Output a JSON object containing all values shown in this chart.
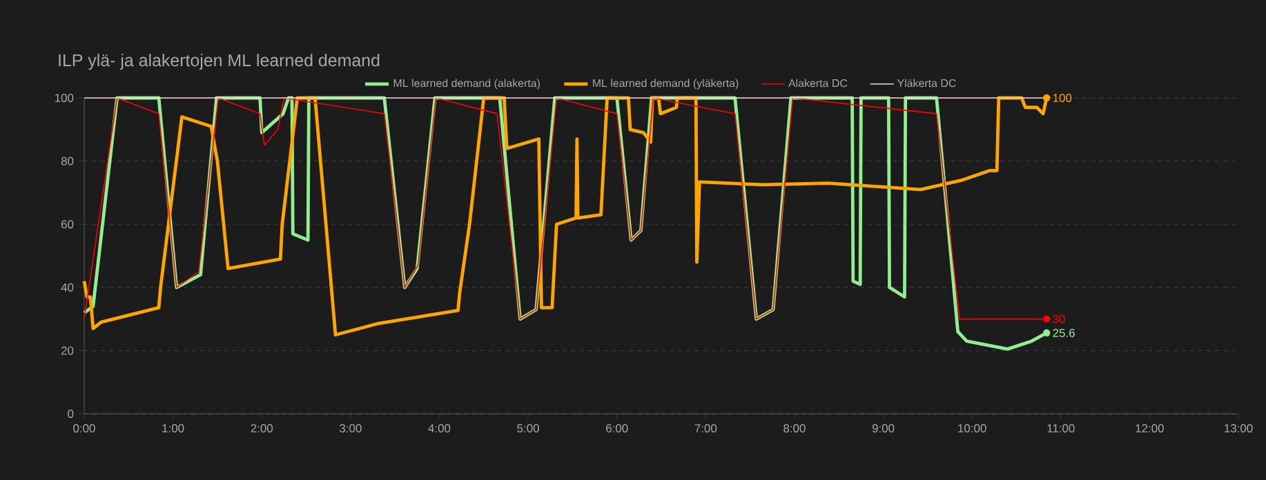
{
  "chart_data": {
    "type": "line",
    "title": "ILP ylä- ja alakertojen ML learned demand",
    "xlim": [
      0,
      13
    ],
    "xticks": [
      {
        "value": 0,
        "label": "0:00"
      },
      {
        "value": 1,
        "label": "1:00"
      },
      {
        "value": 2,
        "label": "2:00"
      },
      {
        "value": 3,
        "label": "3:00"
      },
      {
        "value": 4,
        "label": "4:00"
      },
      {
        "value": 5,
        "label": "5:00"
      },
      {
        "value": 6,
        "label": "6:00"
      },
      {
        "value": 7,
        "label": "7:00"
      },
      {
        "value": 8,
        "label": "8:00"
      },
      {
        "value": 9,
        "label": "9:00"
      },
      {
        "value": 10,
        "label": "10:00"
      },
      {
        "value": 11,
        "label": "11:00"
      },
      {
        "value": 12,
        "label": "12:00"
      },
      {
        "value": 13,
        "label": "13:00"
      }
    ],
    "ylim": [
      0,
      100
    ],
    "yticks": [
      0,
      20,
      40,
      60,
      80,
      100
    ],
    "grid": "y",
    "legend": "top",
    "marker": "none",
    "line_style": "solid",
    "series": [
      {
        "name": "ML learned demand (alakerta)",
        "color": "#90ee90",
        "x": [
          0,
          0.1,
          0.37,
          0.84,
          1.04,
          1.31,
          1.49,
          1.98,
          2.0,
          2.24,
          2.3,
          2.34,
          2.35,
          2.52,
          2.53,
          3.38,
          3.61,
          3.75,
          3.95,
          4.68,
          4.91,
          5.09,
          5.3,
          6.0,
          6.16,
          6.27,
          6.39,
          7.33,
          7.57,
          7.76,
          7.96,
          8.65,
          8.66,
          8.74,
          8.75,
          9.06,
          9.07,
          9.24,
          9.25,
          9.6,
          9.84,
          9.94,
          10.4,
          10.67,
          10.84
        ],
        "values": [
          32,
          34,
          100,
          100,
          40,
          44,
          100,
          100,
          89,
          95,
          100,
          100,
          57,
          55,
          100,
          100,
          40,
          46,
          100,
          100,
          30,
          33,
          100,
          100,
          55,
          58,
          100,
          100,
          30,
          33,
          100,
          100,
          42,
          41,
          100,
          100,
          40,
          37,
          100,
          100,
          26,
          23,
          20.5,
          23,
          25.6
        ],
        "value_labels": [
          null,
          null,
          null,
          null,
          null,
          null,
          null,
          null,
          null,
          null,
          null,
          null,
          null,
          null,
          null,
          null,
          null,
          null,
          null,
          null,
          null,
          null,
          null,
          null,
          null,
          null,
          null,
          null,
          null,
          null,
          null,
          null,
          null,
          null,
          null,
          null,
          null,
          null,
          null,
          null,
          null,
          null,
          null,
          null,
          "25.6"
        ]
      },
      {
        "name": "ML learned demand (yläkerta)",
        "color": "#ffa500",
        "x": [
          0,
          0.03,
          0.07,
          0.1,
          0.19,
          0.84,
          0.86,
          1.1,
          1.43,
          1.5,
          1.62,
          2.21,
          2.23,
          2.4,
          2.6,
          2.83,
          3.3,
          4.21,
          4.23,
          4.34,
          4.5,
          4.73,
          4.76,
          5.12,
          5.15,
          5.27,
          5.32,
          5.54,
          5.55,
          5.56,
          5.82,
          5.89,
          6.13,
          6.15,
          6.3,
          6.38,
          6.4,
          6.47,
          6.49,
          6.67,
          6.68,
          6.89,
          6.9,
          6.93,
          7.64,
          8.38,
          9.42,
          9.89,
          10.2,
          10.28,
          10.3,
          10.56,
          10.6,
          10.73,
          10.8,
          10.84
        ],
        "values": [
          42,
          37,
          37,
          27,
          29,
          33.6,
          40,
          94,
          91,
          80,
          46,
          49,
          60,
          100,
          100,
          25,
          28.5,
          32.7,
          38.5,
          60,
          100,
          100,
          84,
          87,
          33.6,
          33.6,
          60,
          62,
          87,
          62,
          63,
          100,
          100,
          90,
          89,
          86,
          100,
          100,
          95,
          97,
          100,
          100,
          48,
          73.4,
          72.5,
          73,
          71,
          74,
          77,
          77,
          100,
          100,
          97,
          97,
          95,
          100
        ],
        "value_labels": [
          null,
          null,
          null,
          null,
          null,
          null,
          null,
          null,
          null,
          null,
          null,
          null,
          null,
          null,
          null,
          null,
          null,
          null,
          null,
          null,
          null,
          null,
          null,
          null,
          null,
          null,
          null,
          null,
          null,
          null,
          null,
          null,
          null,
          null,
          null,
          null,
          null,
          null,
          null,
          null,
          null,
          null,
          null,
          null,
          null,
          null,
          null,
          null,
          null,
          null,
          null,
          null,
          null,
          null,
          null,
          "100"
        ]
      },
      {
        "name": "Alakerta DC",
        "color": "#ff0000",
        "x": [
          0,
          0.37,
          0.84,
          1.04,
          1.29,
          1.51,
          1.98,
          2.03,
          2.18,
          2.25,
          3.38,
          3.61,
          3.76,
          3.96,
          4.65,
          4.91,
          5.09,
          5.32,
          6.0,
          6.16,
          6.27,
          6.41,
          7.33,
          7.57,
          7.76,
          7.98,
          9.6,
          9.86,
          10.84
        ],
        "values": [
          30,
          100,
          95,
          40,
          45,
          100,
          95,
          85,
          90,
          100,
          95,
          40,
          47,
          100,
          95,
          30,
          33,
          100,
          95,
          55,
          58,
          100,
          95,
          30,
          33,
          100,
          95,
          30,
          30
        ],
        "value_labels": [
          null,
          null,
          null,
          null,
          null,
          null,
          null,
          null,
          null,
          null,
          null,
          null,
          null,
          null,
          null,
          null,
          null,
          null,
          null,
          null,
          null,
          null,
          null,
          null,
          null,
          null,
          null,
          null,
          "30"
        ]
      },
      {
        "name": "Yläkerta DC",
        "color": "#ffd6e0",
        "x": [
          0,
          10.84
        ],
        "values": [
          100,
          100
        ]
      }
    ]
  }
}
